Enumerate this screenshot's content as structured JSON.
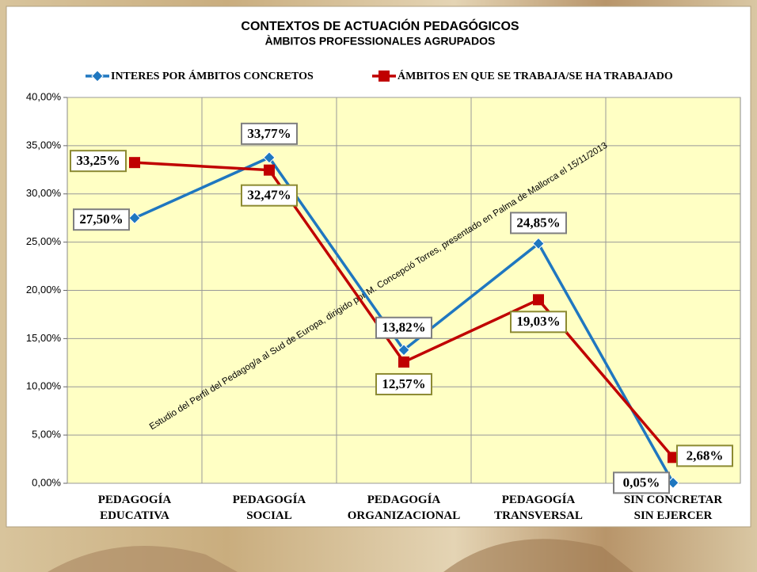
{
  "chart_data": {
    "type": "line",
    "title": "CONTEXTOS DE ACTUACIÓN PEDAGÓGICOS",
    "subtitle": "ÀMBITOS PROFESSIONALES AGRUPADOS",
    "annotation": "Estudio del Perfil del Pedagog/a al Sud de Europa, dirigido por M. Concepció Torres, presentado en Palma de Mallorca el 15/11/2013",
    "categories": [
      "PEDAGOGÍA\nEDUCATIVA",
      "PEDAGOGÍA\nSOCIAL",
      "PEDAGOGÍA\nORGANIZACIONAL",
      "PEDAGOGÍA\nTRANSVERSAL",
      "SIN CONCRETAR\nSIN EJERCER"
    ],
    "series": [
      {
        "name": "INTERES POR ÁMBITOS CONCRETOS",
        "color": "#1f77c0",
        "marker": "diamond",
        "values": [
          27.5,
          33.77,
          13.82,
          24.85,
          0.05
        ],
        "value_labels": [
          "27,50%",
          "33,77%",
          "13,82%",
          "24,85%",
          "0,05%"
        ]
      },
      {
        "name": "ÁMBITOS EN QUE SE TRABAJA/SE HA TRABAJADO",
        "color": "#c00000",
        "marker": "square",
        "values": [
          33.25,
          32.47,
          12.57,
          19.03,
          2.68
        ],
        "value_labels": [
          "33,25%",
          "32,47%",
          "12,57%",
          "19,03%",
          "2,68%"
        ]
      }
    ],
    "ylim": [
      0,
      40
    ],
    "yticks": [
      {
        "value": 0,
        "label": "0,00%"
      },
      {
        "value": 5,
        "label": "5,00%"
      },
      {
        "value": 10,
        "label": "10,00%"
      },
      {
        "value": 15,
        "label": "15,00%"
      },
      {
        "value": 20,
        "label": "20,00%"
      },
      {
        "value": 25,
        "label": "25,00%"
      },
      {
        "value": 30,
        "label": "30,00%"
      },
      {
        "value": 35,
        "label": "35,00%"
      },
      {
        "value": 40,
        "label": "40,00%"
      }
    ],
    "grid": true,
    "legend": "top"
  }
}
